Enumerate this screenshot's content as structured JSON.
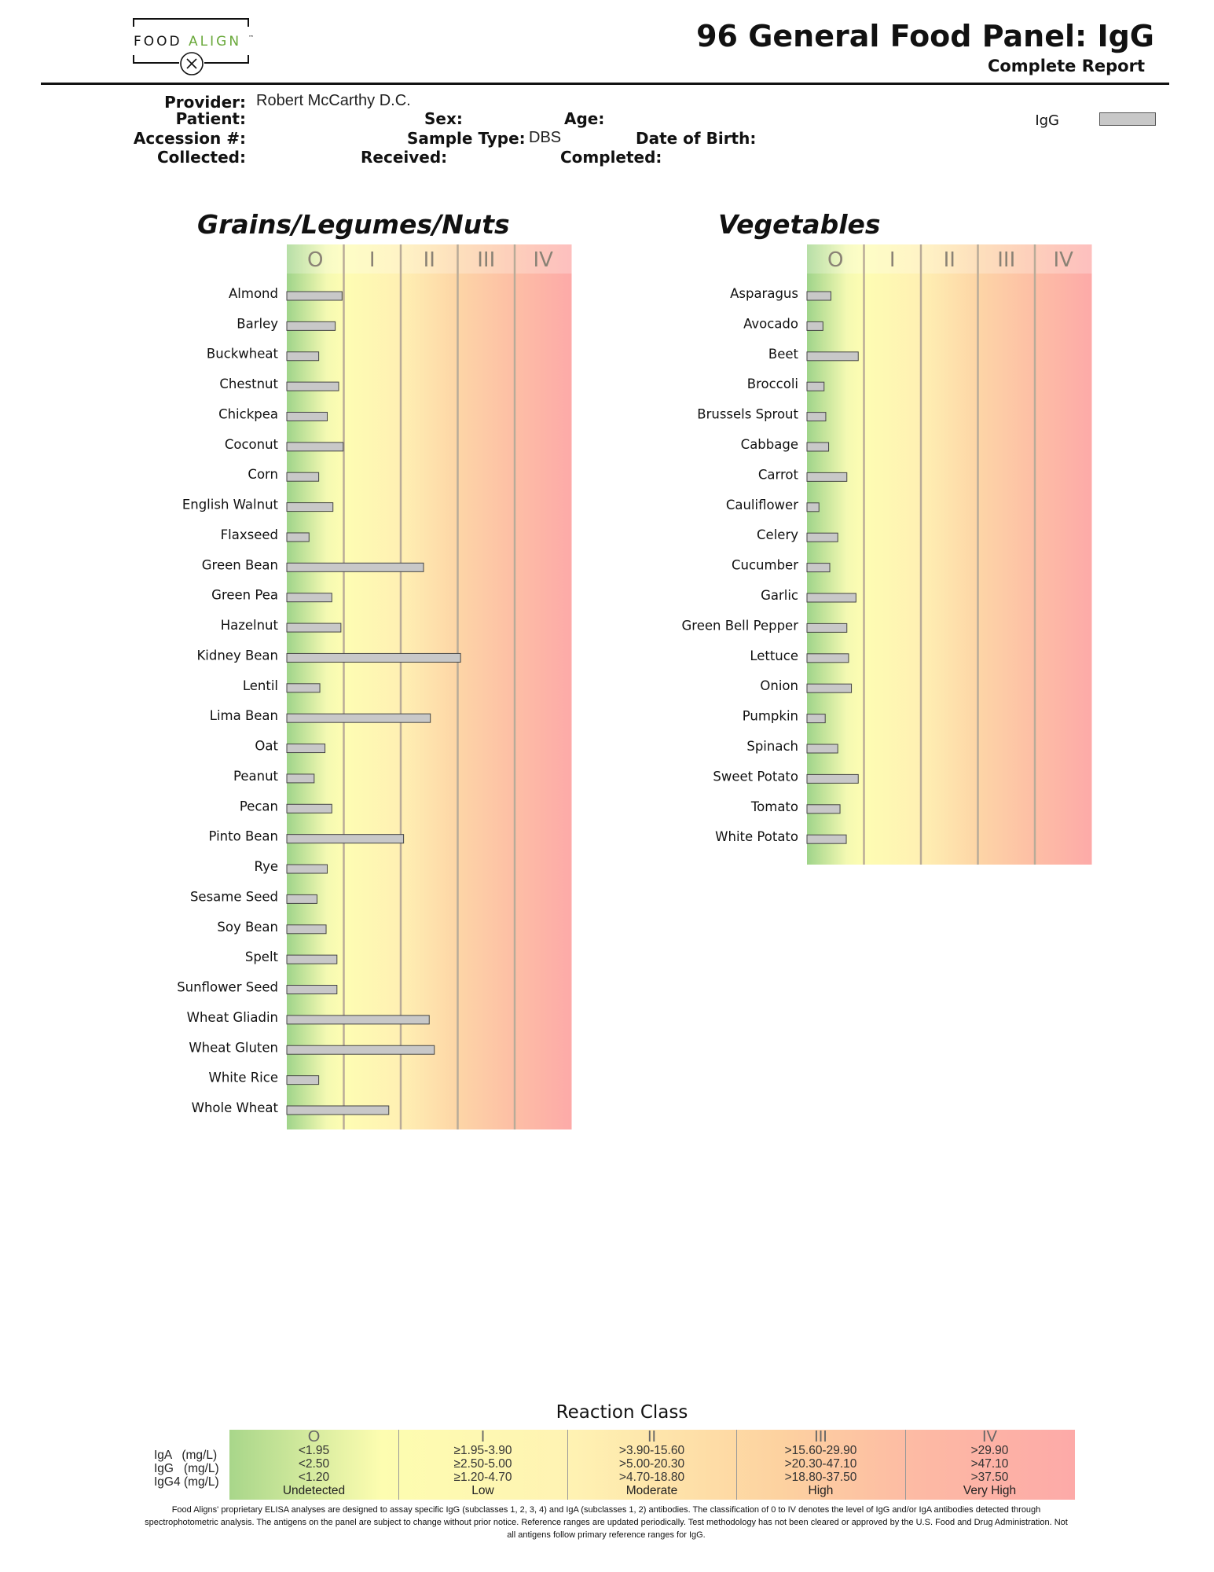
{
  "logo": {
    "word_food": "FOOD",
    "word_align": "ALIGN",
    "tm": "™"
  },
  "header": {
    "title": "96 General Food Panel: IgG",
    "subtitle": "Complete Report"
  },
  "patient_info": {
    "provider_label": "Provider:",
    "provider_value": "Robert McCarthy D.C.",
    "patient_label": "Patient:",
    "sex_label": "Sex:",
    "age_label": "Age:",
    "accession_label": "Accession #:",
    "sample_type_label": "Sample Type:",
    "sample_type_value": "DBS",
    "dob_label": "Date of Birth:",
    "collected_label": "Collected:",
    "received_label": "Received:",
    "completed_label": "Completed:"
  },
  "legend": {
    "label": "IgG",
    "color": "#c8c8c8"
  },
  "chart_data": [
    {
      "type": "bar",
      "orientation": "horizontal",
      "title": "Grains/Legumes/Nuts",
      "class_labels": [
        "O",
        "I",
        "II",
        "III",
        "IV"
      ],
      "xlim": [
        0,
        5
      ],
      "series": [
        {
          "name": "IgG"
        }
      ],
      "categories": [
        "Almond",
        "Barley",
        "Buckwheat",
        "Chestnut",
        "Chickpea",
        "Coconut",
        "Corn",
        "English Walnut",
        "Flaxseed",
        "Green Bean",
        "Green Pea",
        "Hazelnut",
        "Kidney Bean",
        "Lentil",
        "Lima Bean",
        "Oat",
        "Peanut",
        "Pecan",
        "Pinto Bean",
        "Rye",
        "Sesame Seed",
        "Soy Bean",
        "Spelt",
        "Sunflower Seed",
        "Wheat Gliadin",
        "Wheat Gluten",
        "White Rice",
        "Whole Wheat"
      ],
      "values": [
        0.97,
        0.85,
        0.56,
        0.91,
        0.71,
        0.99,
        0.56,
        0.81,
        0.39,
        2.4,
        0.79,
        0.95,
        3.05,
        0.58,
        2.52,
        0.67,
        0.48,
        0.79,
        2.05,
        0.71,
        0.53,
        0.69,
        0.88,
        0.88,
        2.5,
        2.59,
        0.56,
        1.79
      ]
    },
    {
      "type": "bar",
      "orientation": "horizontal",
      "title": "Vegetables",
      "class_labels": [
        "O",
        "I",
        "II",
        "III",
        "IV"
      ],
      "xlim": [
        0,
        5
      ],
      "series": [
        {
          "name": "IgG"
        }
      ],
      "categories": [
        "Asparagus",
        "Avocado",
        "Beet",
        "Broccoli",
        "Brussels Sprout",
        "Cabbage",
        "Carrot",
        "Cauliflower",
        "Celery",
        "Cucumber",
        "Garlic",
        "Green Bell Pepper",
        "Lettuce",
        "Onion",
        "Pumpkin",
        "Spinach",
        "Sweet Potato",
        "Tomato",
        "White Potato"
      ],
      "values": [
        0.42,
        0.28,
        0.9,
        0.3,
        0.33,
        0.38,
        0.7,
        0.21,
        0.54,
        0.4,
        0.86,
        0.7,
        0.73,
        0.78,
        0.32,
        0.54,
        0.9,
        0.58,
        0.69
      ]
    }
  ],
  "reaction_class": {
    "title": "Reaction Class",
    "row_labels": [
      "IgA   (mg/L)",
      "IgG   (mg/L)",
      "IgG4 (mg/L)"
    ],
    "columns": [
      {
        "cls": "O",
        "iga": "<1.95",
        "igg": "<2.50",
        "igg4": "<1.20",
        "name": "Undetected"
      },
      {
        "cls": "I",
        "iga": "≥1.95-3.90",
        "igg": "≥2.50-5.00",
        "igg4": "≥1.20-4.70",
        "name": "Low"
      },
      {
        "cls": "II",
        "iga": ">3.90-15.60",
        "igg": ">5.00-20.30",
        "igg4": ">4.70-18.80",
        "name": "Moderate"
      },
      {
        "cls": "III",
        "iga": ">15.60-29.90",
        "igg": ">20.30-47.10",
        "igg4": ">18.80-37.50",
        "name": "High"
      },
      {
        "cls": "IV",
        "iga": ">29.90",
        "igg": ">47.10",
        "igg4": ">37.50",
        "name": "Very High"
      }
    ]
  },
  "disclaimer": "Food Aligns' proprietary ELISA analyses are designed to assay specific IgG (subclasses 1, 2, 3, 4) and IgA (subclasses 1, 2) antibodies. The classification of 0 to IV denotes the level of IgG and/or IgA antibodies detected through spectrophotometric analysis. The antigens on the panel are subject to change without prior notice. Reference ranges are updated periodically. Test methodology has not been cleared or approved by the U.S. Food and Drug Administration. Not all antigens follow primary reference ranges for IgG."
}
